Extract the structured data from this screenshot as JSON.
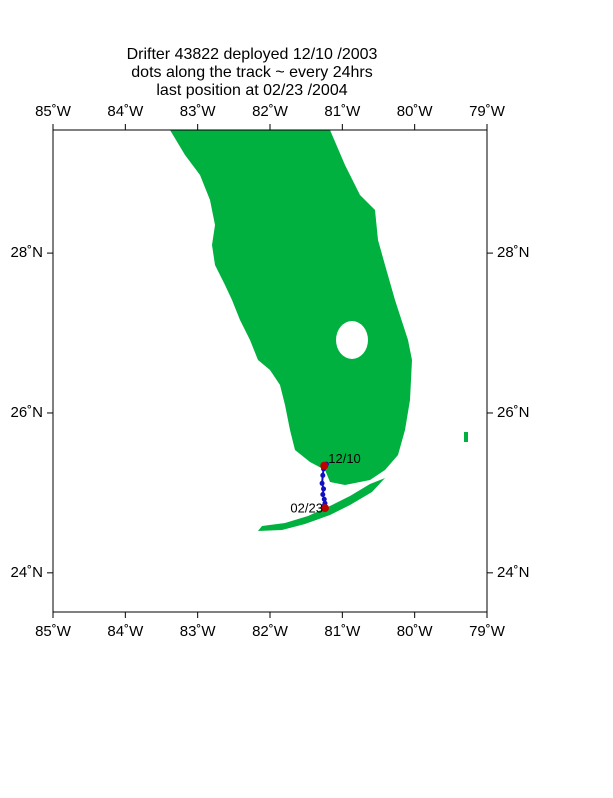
{
  "chart_data": {
    "type": "map",
    "title_lines": [
      "Drifter 43822  deployed  12/10 /2003",
      "dots along the track ~ every 24hrs",
      "last position at 02/23 /2004"
    ],
    "xlim": [
      -85,
      -79
    ],
    "ylim": [
      23.51,
      29.54
    ],
    "xticks": [
      {
        "value": -85,
        "label": "85˚W"
      },
      {
        "value": -84,
        "label": "84˚W"
      },
      {
        "value": -83,
        "label": "83˚W"
      },
      {
        "value": -82,
        "label": "82˚W"
      },
      {
        "value": -81,
        "label": "81˚W"
      },
      {
        "value": -80,
        "label": "80˚W"
      },
      {
        "value": -79,
        "label": "79˚W"
      }
    ],
    "yticks": [
      {
        "value": 24,
        "label": "24˚N"
      },
      {
        "value": 26,
        "label": "26˚N"
      },
      {
        "value": 28,
        "label": "28˚N"
      }
    ],
    "track": {
      "color": "#1010c0",
      "end_color": "#c00000",
      "x": [
        -81.25,
        -81.22,
        -81.26,
        -81.27,
        -81.28,
        -81.26,
        -81.27,
        -81.25,
        -81.24,
        -81.25,
        -81.24
      ],
      "y": [
        25.34,
        25.36,
        25.3,
        25.22,
        25.12,
        25.05,
        24.98,
        24.92,
        24.87,
        24.84,
        24.81
      ],
      "start_label": "12/10",
      "end_label": "02/23"
    }
  }
}
